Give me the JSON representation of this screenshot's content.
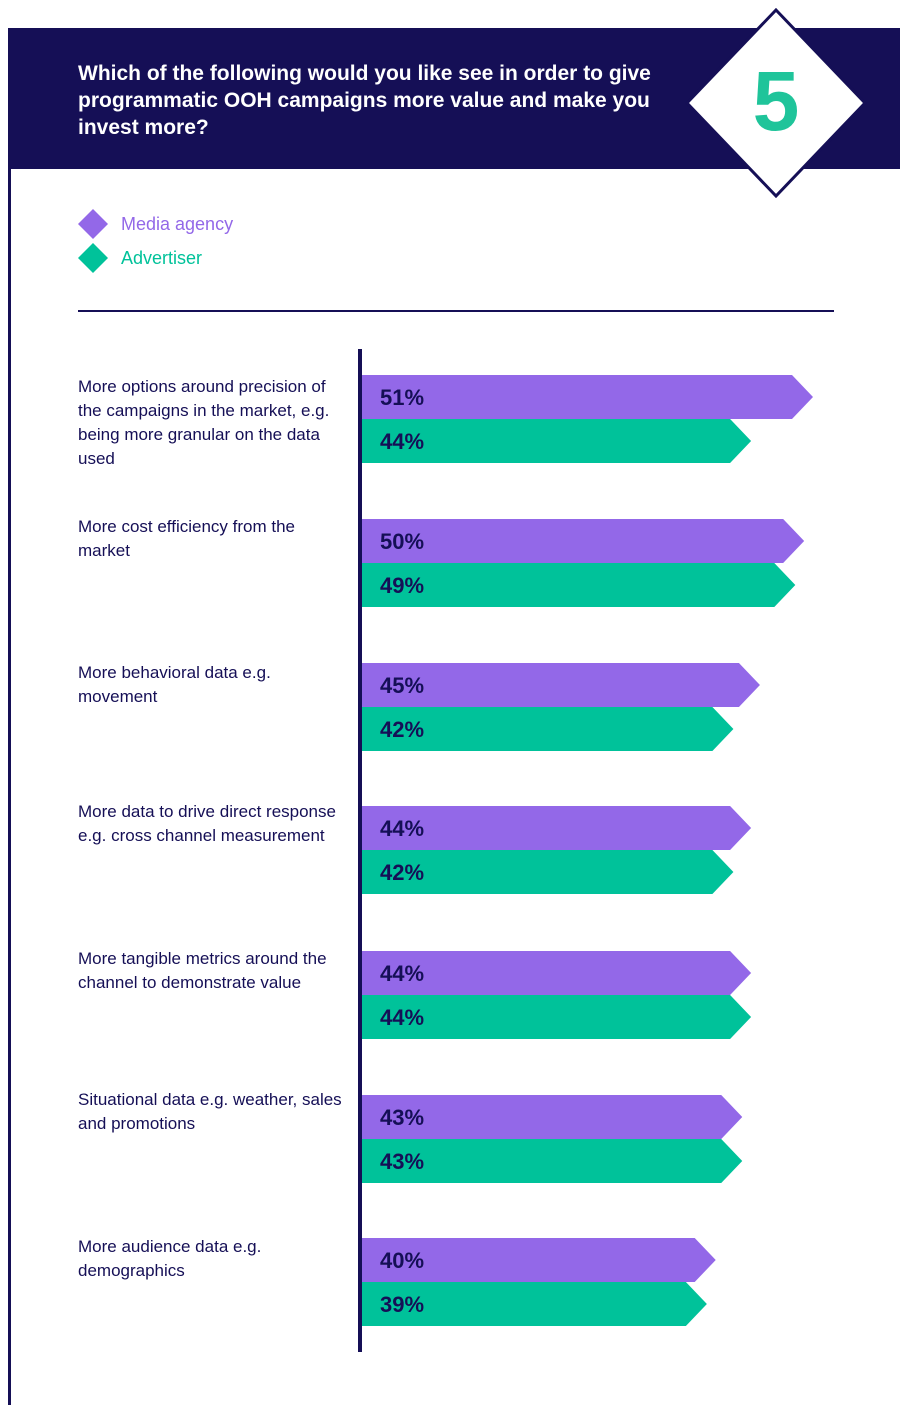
{
  "header": {
    "title": "Which of the following would you like see in order to give programmatic OOH campaigns more value and make you invest more?",
    "badge_number": "5"
  },
  "colors": {
    "navy": "#150f56",
    "media_agency": "#9368e8",
    "advertiser": "#00c29a",
    "badge_number": "#1fc49a"
  },
  "legend": [
    {
      "label": "Media agency",
      "color": "#9368e8"
    },
    {
      "label": "Advertiser",
      "color": "#00c29a"
    }
  ],
  "chart_data": {
    "type": "bar",
    "orientation": "horizontal",
    "categories": [
      "More options around precision of the campaigns in the market, e.g. being more granular on the data used",
      "More cost efficiency from the market",
      "More behavioral data e.g. movement",
      "More data to drive direct response e.g. cross channel measurement",
      "More tangible metrics around the channel to demonstrate value",
      "Situational data e.g. weather, sales and promotions",
      "More audience data e.g. demographics"
    ],
    "series": [
      {
        "name": "Media agency",
        "values": [
          51,
          50,
          45,
          44,
          44,
          43,
          40
        ],
        "color": "#9368e8"
      },
      {
        "name": "Advertiser",
        "values": [
          44,
          49,
          42,
          42,
          44,
          43,
          39
        ],
        "color": "#00c29a"
      }
    ],
    "value_suffix": "%",
    "xlim": [
      0,
      51
    ],
    "grid": false,
    "legend_position": "top-left"
  }
}
